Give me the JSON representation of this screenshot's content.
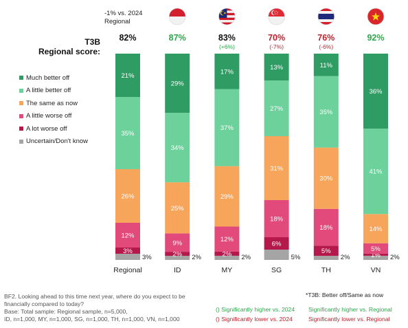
{
  "header": {
    "regional_note_line1": "-1% vs. 2024",
    "regional_note_line2": "Regional",
    "t3b_line1": "T3B",
    "t3b_line2": "Regional score:"
  },
  "colors": {
    "much_better": "#2e9c63",
    "little_better": "#6dd19b",
    "same": "#f8a55c",
    "little_worse": "#e14a7a",
    "lot_worse": "#b5184a",
    "uncertain": "#a5a5a5",
    "sig_higher": "#2ca84a",
    "sig_lower": "#c0202a",
    "neutral": "#111111"
  },
  "chart_data": {
    "type": "bar",
    "stacked": true,
    "orientation": "vertical",
    "categories": [
      "Regional",
      "ID",
      "MY",
      "SG",
      "TH",
      "VN"
    ],
    "flag_icons": [
      "",
      "indonesia-flag-icon",
      "malaysia-flag-icon",
      "singapore-flag-icon",
      "thailand-flag-icon",
      "vietnam-flag-icon"
    ],
    "ylim": [
      0,
      100
    ],
    "series": [
      {
        "name": "Uncertain/Don't know",
        "key": "uncertain",
        "values": [
          3,
          2,
          2,
          5,
          2,
          2
        ]
      },
      {
        "name": "A lot worse off",
        "key": "lot_worse",
        "values": [
          3,
          2,
          2,
          6,
          5,
          1
        ]
      },
      {
        "name": "A little worse off",
        "key": "little_worse",
        "values": [
          12,
          9,
          12,
          18,
          18,
          5
        ]
      },
      {
        "name": "The same as now",
        "key": "same",
        "values": [
          26,
          25,
          29,
          31,
          30,
          14
        ]
      },
      {
        "name": "A little better off",
        "key": "little_better",
        "values": [
          35,
          34,
          37,
          27,
          35,
          41
        ]
      },
      {
        "name": "Much better off",
        "key": "much_better",
        "values": [
          21,
          29,
          17,
          13,
          11,
          36
        ]
      }
    ],
    "legend_order": [
      "Much better off",
      "A little better off",
      "The same as now",
      "A little worse off",
      "A lot worse off",
      "Uncertain/Don't know"
    ],
    "t3b_scores": [
      "82%",
      "87%",
      "83%",
      "70%",
      "76%",
      "92%"
    ],
    "t3b_colors": [
      "neutral",
      "sig_higher",
      "neutral",
      "sig_lower",
      "sig_lower",
      "sig_higher"
    ],
    "t3b_change": [
      "",
      "",
      "(+6%)",
      "(-7%)",
      "(-6%)",
      ""
    ],
    "t3b_change_colors": [
      "",
      "",
      "sig_higher",
      "sig_lower",
      "sig_lower",
      ""
    ]
  },
  "footer": {
    "line1": "BF2. Looking ahead to this time next year, where do you expect to be",
    "line2": "financially compared to today?",
    "line3": "Base: Total sample: Regional sample, n=5,000,",
    "line4": "ID, n=1,000, MY, n=1,000, SG, n=1,000, TH, n=1,000, VN, n=1,000",
    "t3b_note": "*T3B: Better off/Same as now",
    "sig_higher_2024": "() Significantly higher vs. 2024",
    "sig_higher_regional": "Significantly higher vs. Regional",
    "sig_lower_2024": "() Significantly lower vs. 2024",
    "sig_lower_regional": "Significantly lower vs. Regional"
  }
}
